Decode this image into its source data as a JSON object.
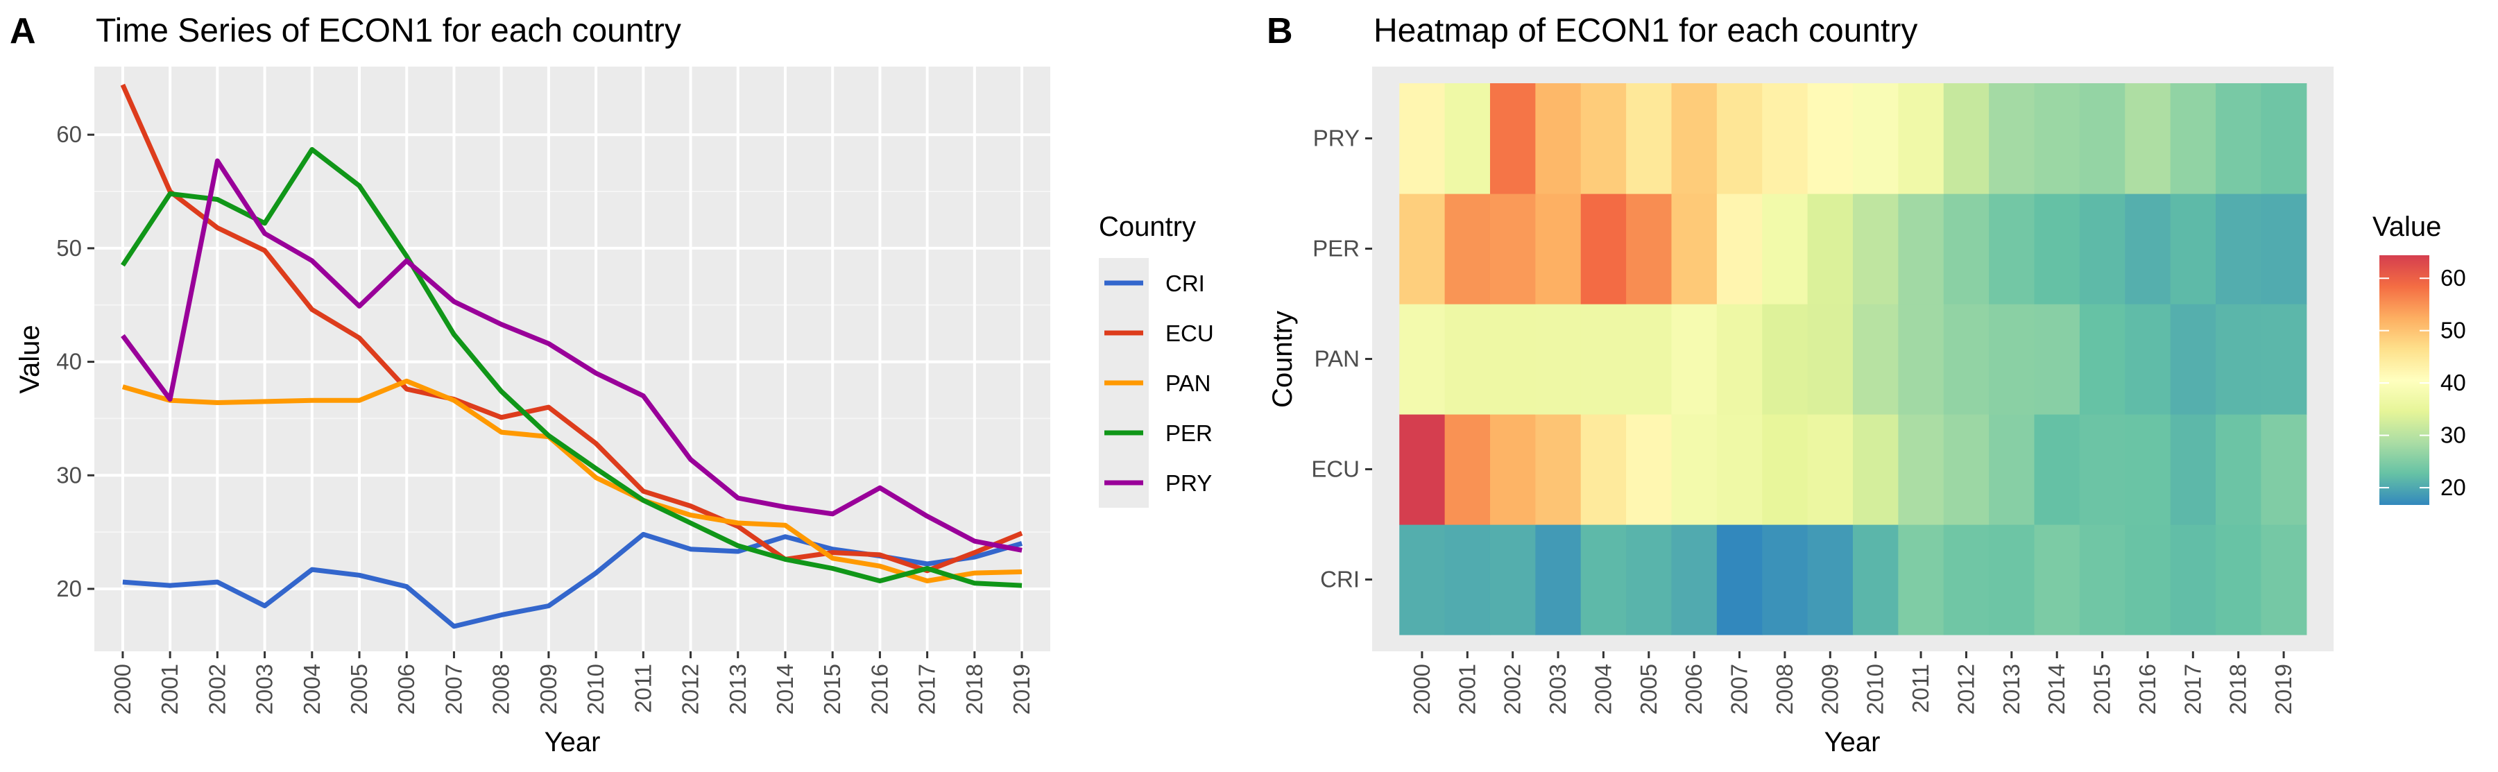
{
  "chart_data": [
    {
      "type": "line",
      "panel_label": "A",
      "title": "Time Series of ECON1 for each country",
      "xlabel": "Year",
      "ylabel": "Value",
      "x": [
        2000,
        2001,
        2002,
        2003,
        2004,
        2005,
        2006,
        2007,
        2008,
        2009,
        2010,
        2011,
        2012,
        2013,
        2014,
        2015,
        2016,
        2017,
        2018,
        2019
      ],
      "x_ticks": [
        "2000",
        "2001",
        "2002",
        "2003",
        "2004",
        "2005",
        "2006",
        "2007",
        "2008",
        "2009",
        "2010",
        "2011",
        "2012",
        "2013",
        "2014",
        "2015",
        "2016",
        "2017",
        "2018",
        "2019"
      ],
      "ylim": [
        14.5,
        66
      ],
      "y_ticks": [
        20,
        30,
        40,
        50,
        60
      ],
      "y_tick_labels": [
        "20",
        "30",
        "40",
        "50",
        "60"
      ],
      "grid": true,
      "legend": {
        "title": "Country",
        "position": "right"
      },
      "series": [
        {
          "name": "CRI",
          "color": "#3366CC",
          "values": [
            20.6,
            20.3,
            20.6,
            18.5,
            21.7,
            21.2,
            20.2,
            16.7,
            17.7,
            18.5,
            21.4,
            24.8,
            23.5,
            23.3,
            24.6,
            23.5,
            22.9,
            22.2,
            22.8,
            24.0
          ]
        },
        {
          "name": "ECU",
          "color": "#DD3C1C",
          "values": [
            64.4,
            55.0,
            51.8,
            49.8,
            44.6,
            42.1,
            37.6,
            36.7,
            35.1,
            36.0,
            32.8,
            28.6,
            27.3,
            25.5,
            22.6,
            23.2,
            23.0,
            21.6,
            23.2,
            24.9
          ]
        },
        {
          "name": "PAN",
          "color": "#FF9900",
          "values": [
            37.8,
            36.6,
            36.4,
            36.5,
            36.6,
            36.6,
            38.3,
            36.6,
            33.8,
            33.4,
            29.8,
            27.8,
            26.5,
            25.8,
            25.6,
            22.7,
            22.0,
            20.7,
            21.4,
            21.5
          ]
        },
        {
          "name": "PER",
          "color": "#109618",
          "values": [
            48.5,
            54.8,
            54.3,
            52.2,
            58.7,
            55.5,
            49.3,
            42.4,
            37.4,
            33.5,
            30.6,
            27.8,
            25.8,
            23.8,
            22.6,
            21.8,
            20.7,
            21.8,
            20.5,
            20.3
          ]
        },
        {
          "name": "PRY",
          "color": "#990099",
          "values": [
            42.3,
            36.7,
            57.7,
            51.3,
            48.9,
            44.9,
            48.9,
            45.3,
            43.3,
            41.6,
            39.0,
            37.0,
            31.4,
            28.0,
            27.2,
            26.6,
            28.9,
            26.4,
            24.2,
            23.4
          ]
        }
      ]
    },
    {
      "type": "heatmap",
      "panel_label": "B",
      "title": "Heatmap of ECON1 for each country",
      "xlabel": "Year",
      "ylabel": "Country",
      "x_ticks": [
        "2000",
        "2001",
        "2002",
        "2003",
        "2004",
        "2005",
        "2006",
        "2007",
        "2008",
        "2009",
        "2010",
        "2011",
        "2012",
        "2013",
        "2014",
        "2015",
        "2016",
        "2017",
        "2018",
        "2019"
      ],
      "y_ticks": [
        "CRI",
        "ECU",
        "PAN",
        "PER",
        "PRY"
      ],
      "legend": {
        "title": "Value",
        "position": "right",
        "ticks": [
          20,
          30,
          40,
          50,
          60
        ],
        "tick_labels": [
          "20",
          "30",
          "40",
          "50",
          "60"
        ],
        "range": [
          16.7,
          64.4
        ]
      },
      "colorscale": [
        "#3288BD",
        "#66C2A5",
        "#ABDDA4",
        "#E6F598",
        "#FFFFBF",
        "#FEE08B",
        "#FDAE61",
        "#F46D43",
        "#D53E4F"
      ]
    }
  ]
}
